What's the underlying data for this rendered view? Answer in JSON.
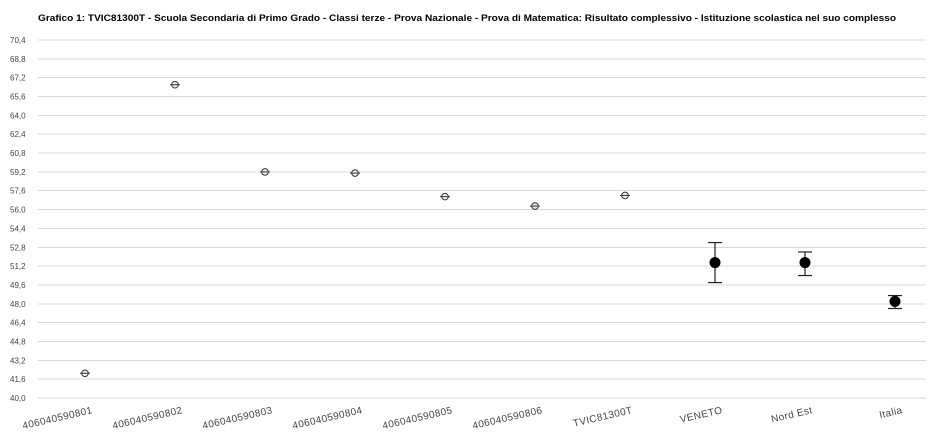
{
  "chart_data": {
    "type": "scatter",
    "title": "Grafico 1: TVIC81300T - Scuola Secondaria di Primo Grado - Classi terze - Prova Nazionale - Prova di Matematica: Risultato complessivo - Istituzione scolastica nel suo complesso",
    "categories": [
      "406040590801",
      "406040590802",
      "406040590803",
      "406040590804",
      "406040590805",
      "406040590806",
      "TVIC81300T",
      "VENETO",
      "Nord Est",
      "Italia"
    ],
    "series": [
      {
        "values": [
          42.1,
          66.6,
          59.2,
          59.1,
          57.1,
          56.3,
          57.2,
          null,
          null,
          null
        ],
        "marker_fill": "#f2f2f2",
        "marker_stroke": "#333333"
      },
      {
        "values": [
          null,
          null,
          null,
          null,
          null,
          null,
          null,
          51.5,
          51.5,
          48.2
        ],
        "error_low": [
          null,
          null,
          null,
          null,
          null,
          null,
          null,
          49.8,
          50.4,
          47.6
        ],
        "error_high": [
          null,
          null,
          null,
          null,
          null,
          null,
          null,
          53.2,
          52.4,
          48.7
        ],
        "marker_fill": "#000000",
        "marker_stroke": "#000000"
      }
    ],
    "ylim": [
      40.0,
      70.4
    ],
    "yticks": [
      "40,0",
      "41,6",
      "43,2",
      "44,8",
      "46,4",
      "48,0",
      "49,6",
      "51,2",
      "52,8",
      "54,4",
      "56,0",
      "57,6",
      "59,2",
      "60,8",
      "62,4",
      "64,0",
      "65,6",
      "67,2",
      "68,8",
      "70,4"
    ],
    "grid": true,
    "legend": "none"
  }
}
